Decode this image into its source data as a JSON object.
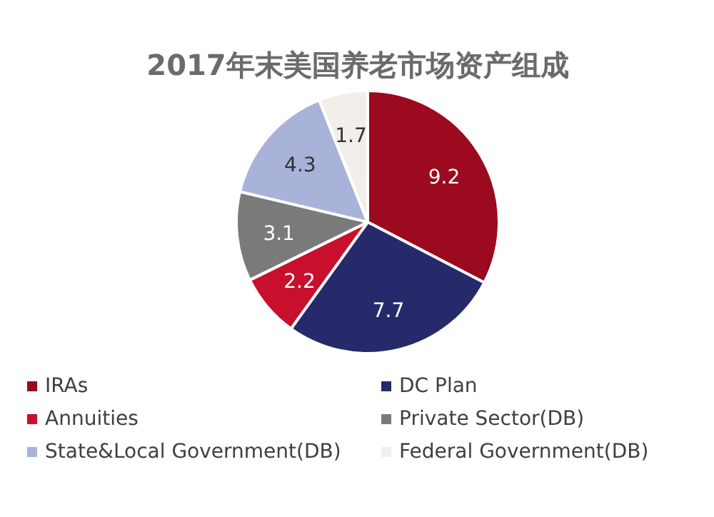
{
  "chart_data": {
    "type": "pie",
    "title": "2017年末美国养老市场资产组成",
    "categories": [
      "IRAs",
      "DC Plan",
      "Annuities",
      "Private Sector(DB)",
      "State&Local Government(DB)",
      "Federal Government(DB)"
    ],
    "values": [
      9.2,
      7.7,
      2.2,
      3.1,
      4.3,
      1.7
    ],
    "colors": [
      "#9b0a1e",
      "#262a6b",
      "#c8102e",
      "#7a7a7a",
      "#a9b3d9",
      "#f3eee9"
    ],
    "data_labels": true,
    "legend": "bottom"
  }
}
